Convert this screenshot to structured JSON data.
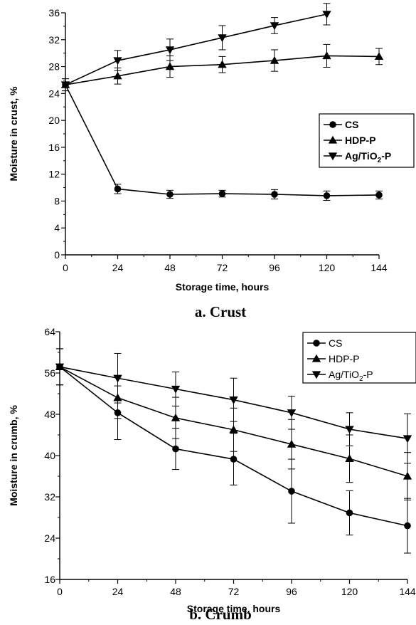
{
  "figure_a": {
    "caption": "a. Crust",
    "legend_title_sub": "2"
  },
  "figure_b": {
    "caption": "b. Crumb"
  },
  "chart_data": [
    {
      "type": "line",
      "xlabel": "Storage time, hours",
      "ylabel": "Moisture in crust, %",
      "xlim": [
        0,
        144
      ],
      "ylim": [
        0,
        36
      ],
      "x_ticks": [
        0,
        24,
        48,
        72,
        96,
        120,
        144
      ],
      "y_ticks": [
        0,
        4,
        8,
        12,
        16,
        20,
        24,
        28,
        32,
        36
      ],
      "legend_position": "right",
      "x": [
        0,
        24,
        48,
        72,
        96,
        120,
        144
      ],
      "series": [
        {
          "name": "CS",
          "marker": "circle",
          "legend_bold": true,
          "values": [
            25.3,
            9.8,
            9.0,
            9.1,
            9.0,
            8.8,
            8.9
          ],
          "errors": [
            0.9,
            0.7,
            0.6,
            0.5,
            0.7,
            0.7,
            0.6
          ]
        },
        {
          "name": "HDP-P",
          "marker": "triangle-up",
          "legend_bold": true,
          "values": [
            25.3,
            26.6,
            28.0,
            28.3,
            28.9,
            29.6,
            29.5
          ],
          "errors": [
            0.9,
            1.2,
            1.6,
            1.2,
            1.6,
            1.7,
            1.2
          ]
        },
        {
          "name": "Ag/TiO2-P",
          "name_main": "Ag/TiO",
          "name_sub": "2",
          "name_tail": "-P",
          "marker": "triangle-down",
          "legend_bold": true,
          "values": [
            25.3,
            28.9,
            30.5,
            32.3,
            34.1,
            35.8,
            null
          ],
          "errors": [
            0.9,
            1.5,
            1.6,
            1.8,
            1.2,
            1.6,
            null
          ]
        }
      ]
    },
    {
      "type": "line",
      "xlabel": "Storage time, hours",
      "ylabel": "Moisture in crumb, %",
      "xlim": [
        0,
        144
      ],
      "ylim": [
        16,
        64
      ],
      "x_ticks": [
        0,
        24,
        48,
        72,
        96,
        120,
        144
      ],
      "y_ticks": [
        16,
        24,
        32,
        40,
        48,
        56,
        64
      ],
      "legend_position": "top-right",
      "x": [
        0,
        24,
        48,
        72,
        96,
        120,
        144
      ],
      "series": [
        {
          "name": "CS",
          "marker": "circle",
          "legend_bold": false,
          "values": [
            57.2,
            48.3,
            41.3,
            39.3,
            33.1,
            28.9,
            26.4
          ],
          "errors": [
            3.5,
            5.2,
            4.0,
            5.0,
            6.2,
            4.3,
            5.3
          ]
        },
        {
          "name": "HDP-P",
          "marker": "triangle-up",
          "legend_bold": false,
          "values": [
            57.2,
            51.2,
            47.3,
            45.0,
            42.2,
            39.4,
            36.0
          ],
          "errors": [
            3.5,
            4.0,
            4.0,
            4.2,
            4.8,
            4.6,
            4.6
          ]
        },
        {
          "name": "Ag/TiO2-P",
          "name_main": "Ag/TiO",
          "name_sub": "2",
          "name_tail": "-P",
          "marker": "triangle-down",
          "legend_bold": false,
          "values": [
            57.2,
            55.0,
            52.9,
            50.8,
            48.3,
            45.1,
            43.3
          ],
          "errors": [
            3.5,
            4.8,
            3.3,
            4.2,
            3.2,
            3.2,
            4.8
          ]
        }
      ]
    }
  ]
}
